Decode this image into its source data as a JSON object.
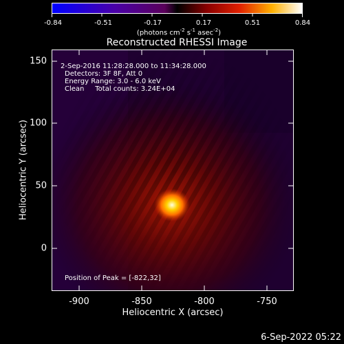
{
  "colorbar": {
    "ticks": [
      "-0.84",
      "-0.51",
      "-0.17",
      "0.17",
      "0.51",
      "0.84"
    ],
    "unit_base": "(photons cm",
    "unit_exp1": "-2",
    "unit_mid": " s",
    "unit_exp2": "-1",
    "unit_mid2": " asec",
    "unit_exp3": "-2",
    "unit_end": ")"
  },
  "title": "Reconstructed RHESSI Image",
  "info": {
    "time": "2-Sep-2016 11:28:28.000 to 11:34:28.000",
    "detectors": "Detectors: 3F 8F, Att 0",
    "energy": "Energy Range: 3.0 - 6.0 keV",
    "method": "Clean     Total counts: 3.24E+04",
    "peak": "Position of Peak = [-822,32]"
  },
  "axes": {
    "xlabel": "Heliocentric X (arcsec)",
    "ylabel": "Heliocentric Y (arcsec)",
    "xticks": [
      "-900",
      "-850",
      "-800",
      "-750"
    ],
    "yticks": [
      "150",
      "100",
      "50",
      "0"
    ]
  },
  "footer": "6-Sep-2022 05:22",
  "colors": {
    "background": "#000000",
    "foreground": "#ffffff"
  }
}
